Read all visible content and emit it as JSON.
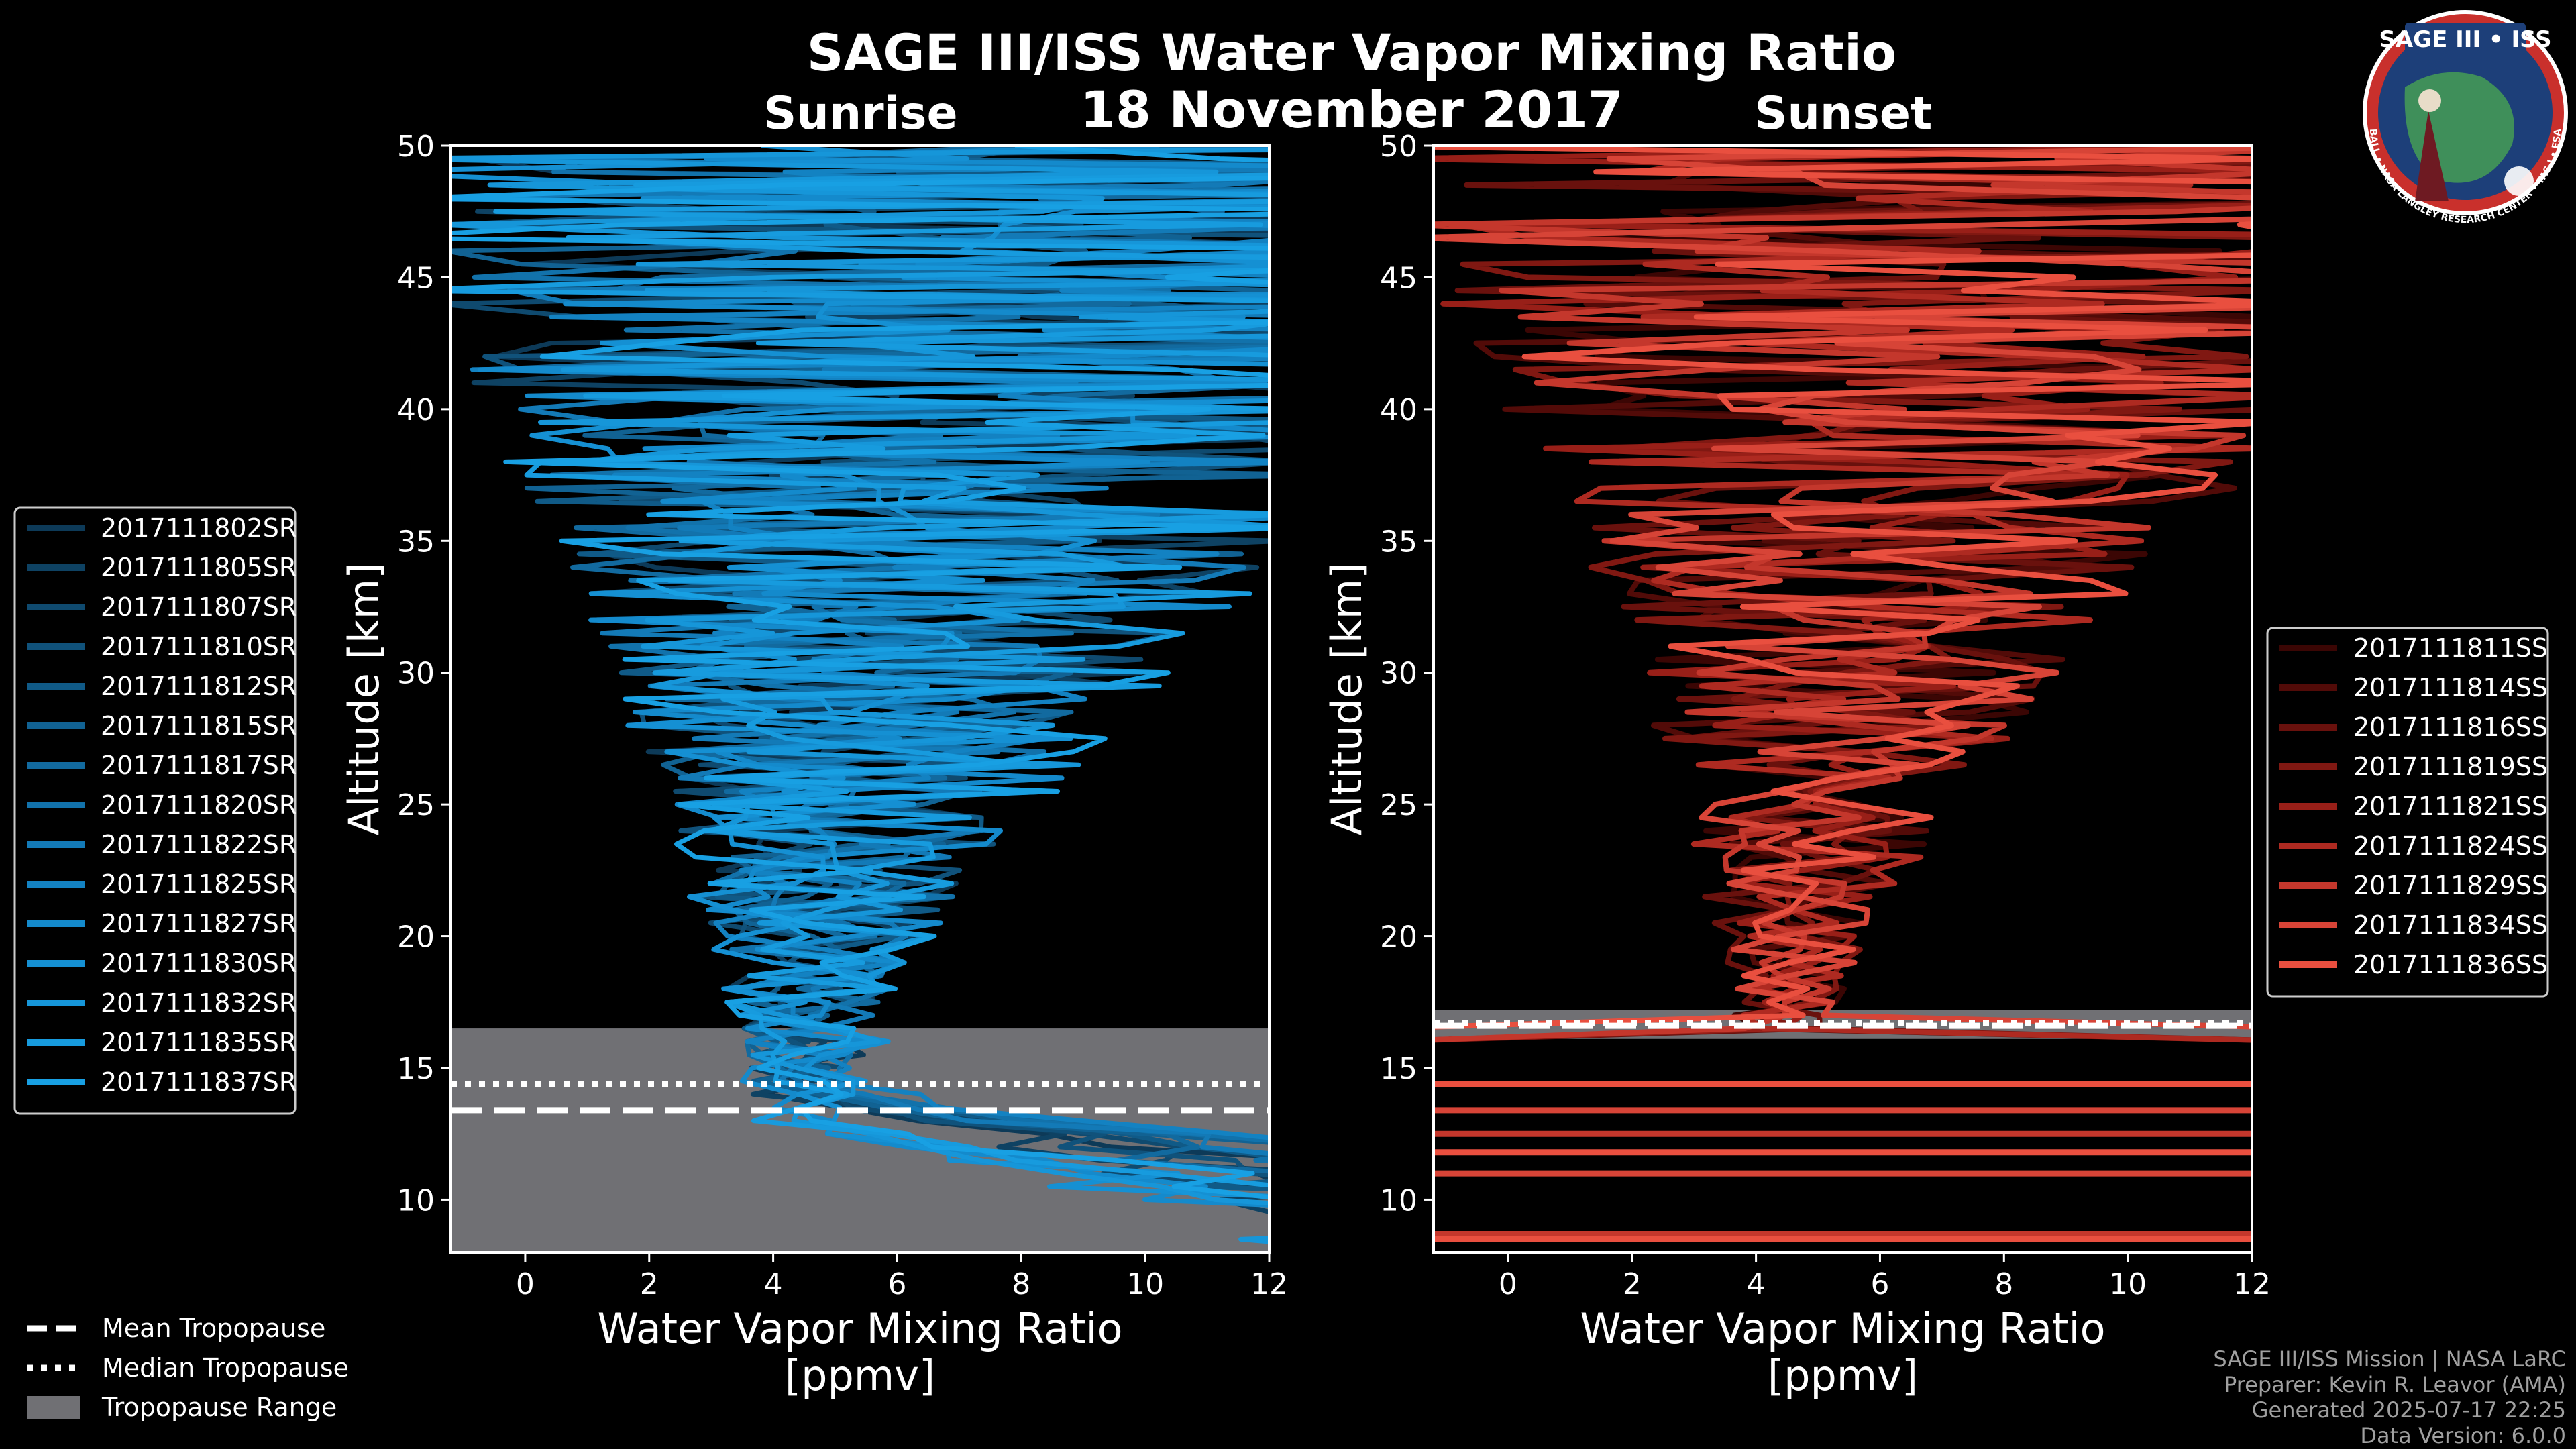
{
  "chart_data": {
    "type": "line",
    "title": "SAGE III/ISS Water Vapor Mixing Ratio",
    "date": "18 November 2017",
    "shared": {
      "xlabel_line1": "Water Vapor Mixing Ratio",
      "xlabel_line2": "[ppmv]",
      "ylabel": "Altitude [km]",
      "xlim": [
        -1.2,
        12
      ],
      "ylim": [
        8,
        50
      ],
      "xticks": [
        0,
        2,
        4,
        6,
        8,
        10,
        12
      ],
      "yticks": [
        10,
        15,
        20,
        25,
        30,
        35,
        40,
        45,
        50
      ]
    },
    "panels": [
      {
        "id": "sunrise",
        "subtitle": "Sunrise",
        "tropopause": {
          "min_km": 8.0,
          "max_km": 16.5,
          "mean_km": 13.4,
          "median_km": 14.4
        },
        "series": [
          {
            "name": "2017111802SR",
            "color": "#0d3a58"
          },
          {
            "name": "2017111805SR",
            "color": "#0e4263"
          },
          {
            "name": "2017111807SR",
            "color": "#0f4a6f"
          },
          {
            "name": "2017111810SR",
            "color": "#10527b"
          },
          {
            "name": "2017111812SR",
            "color": "#105a87"
          },
          {
            "name": "2017111815SR",
            "color": "#116293"
          },
          {
            "name": "2017111817SR",
            "color": "#126a9f"
          },
          {
            "name": "2017111820SR",
            "color": "#1272ab"
          },
          {
            "name": "2017111822SR",
            "color": "#137ab7"
          },
          {
            "name": "2017111825SR",
            "color": "#1382c2"
          },
          {
            "name": "2017111827SR",
            "color": "#148acc"
          },
          {
            "name": "2017111830SR",
            "color": "#1590d3"
          },
          {
            "name": "2017111832SR",
            "color": "#1696d9"
          },
          {
            "name": "2017111835SR",
            "color": "#179bde"
          },
          {
            "name": "2017111837SR",
            "color": "#18a0e3"
          }
        ]
      },
      {
        "id": "sunset",
        "subtitle": "Sunset",
        "tropopause": {
          "min_km": 16.1,
          "max_km": 17.2,
          "mean_km": 16.6,
          "median_km": 16.7
        },
        "series": [
          {
            "name": "2017111811SS",
            "color": "#3b0604"
          },
          {
            "name": "2017111814SS",
            "color": "#520b08"
          },
          {
            "name": "2017111816SS",
            "color": "#69110d"
          },
          {
            "name": "2017111819SS",
            "color": "#801812"
          },
          {
            "name": "2017111821SS",
            "color": "#981f18"
          },
          {
            "name": "2017111824SS",
            "color": "#ae2a21"
          },
          {
            "name": "2017111829SS",
            "color": "#c4372c"
          },
          {
            "name": "2017111834SS",
            "color": "#d74437"
          },
          {
            "name": "2017111836SS",
            "color": "#e94f3f"
          }
        ]
      }
    ],
    "bottom_legend": [
      {
        "label": "Mean Tropopause",
        "style": "dashed"
      },
      {
        "label": "Median Tropopause",
        "style": "dotted"
      },
      {
        "label": "Tropopause Range",
        "style": "patch",
        "color": "#707074"
      }
    ]
  },
  "credits": [
    "SAGE III/ISS Mission | NASA LaRC",
    "Preparer: Kevin R. Leavor (AMA)",
    "Generated 2025-07-17 22:25",
    "Data Version: 6.0.0"
  ],
  "badge": {
    "title": "SAGE III • ISS",
    "ring_text": "BALL • NASA LANGLEY RESEARCH CENTER • TAS-I • ESA"
  },
  "colors": {
    "background": "#000000",
    "sunrise_accent": "#18a0e3",
    "sunset_accent": "#e94f3f",
    "tropopause_patch": "#707074"
  }
}
